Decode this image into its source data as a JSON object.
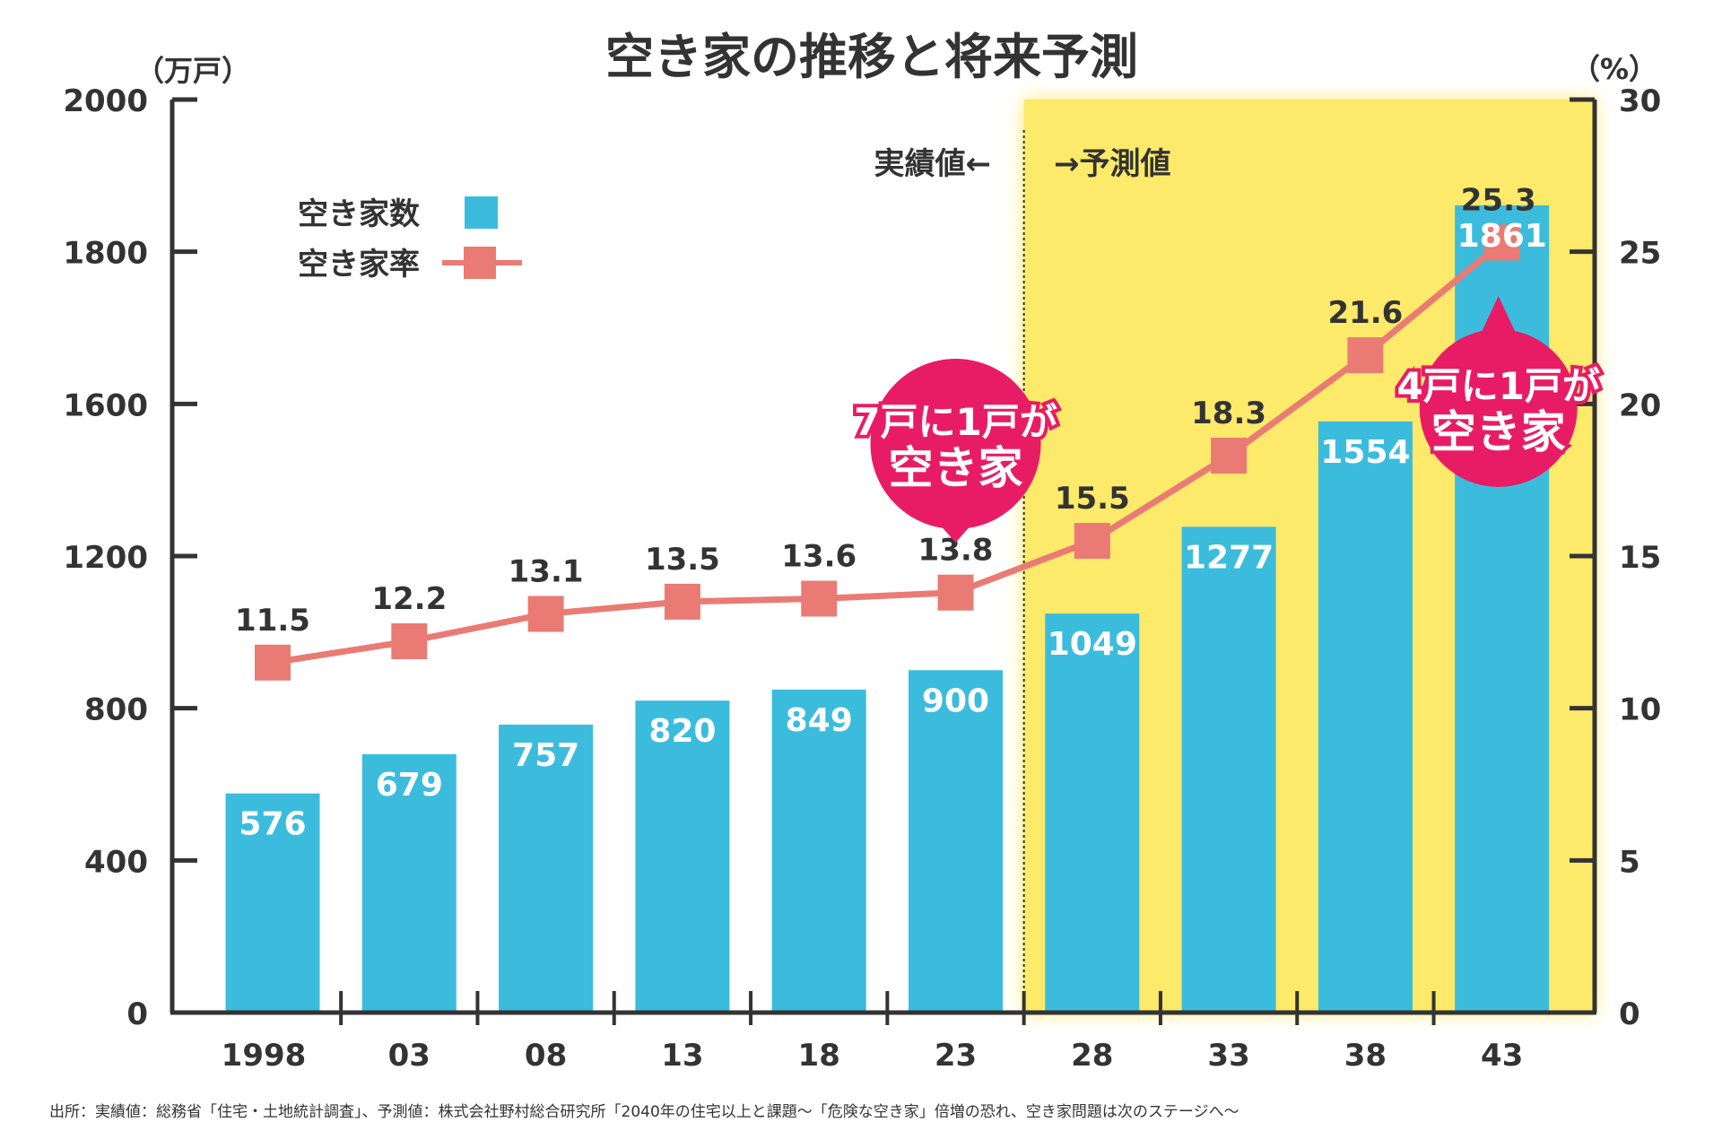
{
  "chart_data": {
    "type": "bar+line",
    "title": "空き家の推移と将来予測",
    "left_unit": "（万戸）",
    "right_unit": "（%）",
    "categories": [
      "1998",
      "03",
      "08",
      "13",
      "18",
      "23",
      "28",
      "33",
      "38",
      "43"
    ],
    "left_ticks": [
      "0",
      "400",
      "800",
      "1200",
      "1600",
      "1800",
      "2000"
    ],
    "right_ticks": [
      "0",
      "5",
      "10",
      "15",
      "20",
      "25",
      "30"
    ],
    "ylim_left": [
      0,
      2000
    ],
    "ylim_right": [
      0,
      30
    ],
    "series": [
      {
        "name": "空き家数",
        "type": "bar",
        "color": "#3bbcdc",
        "values": [
          576,
          679,
          757,
          820,
          849,
          900,
          1049,
          1277,
          1554,
          1861
        ]
      },
      {
        "name": "空き家率",
        "type": "line",
        "color": "#e97b74",
        "values": [
          11.5,
          12.2,
          13.1,
          13.5,
          13.6,
          13.8,
          15.5,
          18.3,
          21.6,
          25.3
        ]
      }
    ],
    "forecast_region": {
      "from_category": "28",
      "color": "#fde96a"
    },
    "annotations": {
      "actual_label": "実績値←",
      "forecast_label": "→予測値",
      "callout_1": {
        "line1": "7戸に1戸が",
        "line2": "空き家",
        "category": "23",
        "color": "#e81c65"
      },
      "callout_2": {
        "line1": "4戸に1戸が",
        "line2": "空き家",
        "category": "43",
        "color": "#e81c65"
      }
    },
    "legend_placement": "top-left",
    "grid": false
  },
  "source": "出所：実績値：総務省「住宅・土地統計調査」、予測値：株式会社野村総合研究所「2040年の住宅以上と課題～「危険な空き家」倍増の恐れ、空き家問題は次のステージへ～"
}
